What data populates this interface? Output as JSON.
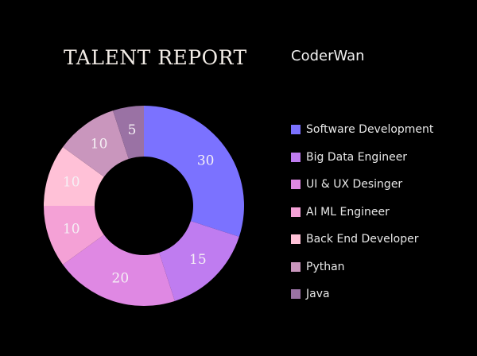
{
  "header": {
    "title": "TALENT REPORT",
    "brand": "CoderWan"
  },
  "chart_data": {
    "type": "pie",
    "style": "donut",
    "title": "TALENT REPORT",
    "slices": [
      {
        "label": "Software Development",
        "value": 30,
        "color": "#7b72ff"
      },
      {
        "label": "Big Data Engineer",
        "value": 15,
        "color": "#bf7cf0"
      },
      {
        "label": "UI & UX Desinger",
        "value": 20,
        "color": "#df88e3"
      },
      {
        "label": "AI ML Engineer",
        "value": 10,
        "color": "#f4a1d6"
      },
      {
        "label": "Back End Developer",
        "value": 10,
        "color": "#ffc1d7"
      },
      {
        "label": "Pythan",
        "value": 10,
        "color": "#c996bd"
      },
      {
        "label": "Java",
        "value": 5,
        "color": "#9a72a4"
      }
    ],
    "legend_position": "right"
  }
}
